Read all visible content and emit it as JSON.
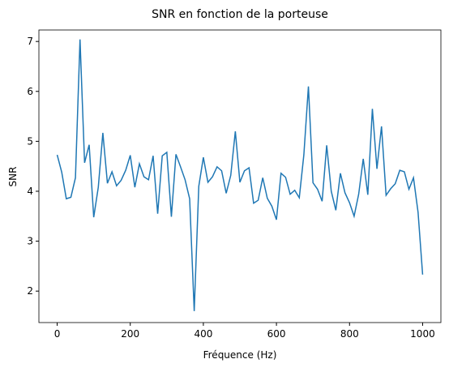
{
  "chart_data": {
    "type": "line",
    "title": "SNR en fonction de la porteuse",
    "x_label": "Fréquence (Hz)",
    "y_label": "SNR",
    "x": [
      0,
      12.5,
      25,
      37.5,
      50,
      62.5,
      75,
      87.5,
      100,
      112.5,
      125,
      137.5,
      150,
      162.5,
      175,
      187.5,
      200,
      212.5,
      225,
      237.5,
      250,
      262.5,
      275,
      287.5,
      300,
      312.5,
      325,
      337.5,
      350,
      362.5,
      375,
      387.5,
      400,
      412.5,
      425,
      437.5,
      450,
      462.5,
      475,
      487.5,
      500,
      512.5,
      525,
      537.5,
      550,
      562.5,
      575,
      587.5,
      600,
      612.5,
      625,
      637.5,
      650,
      662.5,
      675,
      687.5,
      700,
      712.5,
      725,
      737.5,
      750,
      762.5,
      775,
      787.5,
      800,
      812.5,
      825,
      837.5,
      850,
      862.5,
      875,
      887.5,
      900,
      912.5,
      925,
      937.5,
      950,
      962.5,
      975,
      987.5,
      1000
    ],
    "series": [
      {
        "name": "SNR",
        "color": "#1f77b4",
        "values": [
          4.73,
          4.38,
          3.85,
          3.88,
          4.27,
          7.04,
          4.57,
          4.93,
          3.48,
          4.08,
          5.17,
          4.16,
          4.39,
          4.11,
          4.22,
          4.42,
          4.72,
          4.08,
          4.55,
          4.29,
          4.23,
          4.71,
          3.55,
          4.71,
          4.78,
          3.49,
          4.74,
          4.49,
          4.23,
          3.85,
          1.6,
          4.1,
          4.68,
          4.18,
          4.29,
          4.49,
          4.41,
          3.96,
          4.32,
          5.2,
          4.18,
          4.41,
          4.47,
          3.76,
          3.82,
          4.27,
          3.86,
          3.7,
          3.43,
          4.36,
          4.28,
          3.94,
          4.02,
          3.87,
          4.73,
          6.1,
          4.17,
          4.04,
          3.8,
          4.92,
          4.0,
          3.62,
          4.36,
          3.97,
          3.77,
          3.5,
          3.94,
          4.65,
          3.93,
          5.65,
          4.45,
          5.3,
          3.92,
          4.05,
          4.15,
          4.42,
          4.39,
          4.04,
          4.27,
          3.58,
          2.33
        ]
      }
    ],
    "xlim": [
      -50,
      1050
    ],
    "xticks": [
      0,
      200,
      400,
      600,
      800,
      1000
    ],
    "ylim": [
      1.37,
      7.23
    ],
    "yticks": [
      2,
      3,
      4,
      5,
      6,
      7
    ]
  }
}
